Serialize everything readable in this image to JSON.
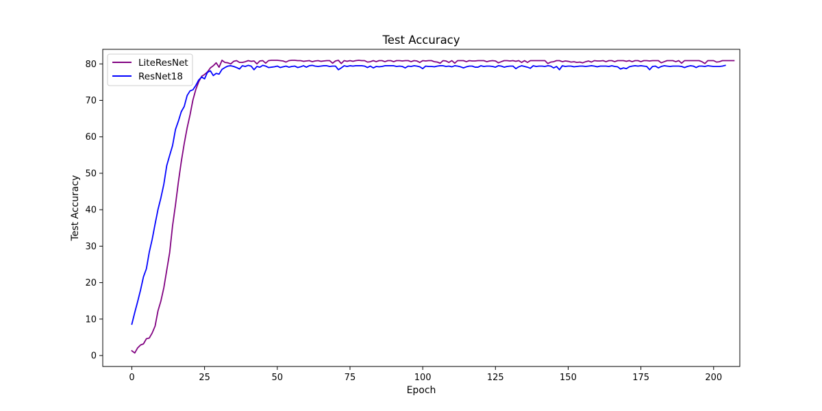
{
  "chart_data": {
    "type": "line",
    "title": "Test Accuracy",
    "xlabel": "Epoch",
    "ylabel": "Test Accuracy",
    "xlim": [
      -10,
      209
    ],
    "ylim": [
      -3,
      84
    ],
    "xticks": [
      0,
      25,
      50,
      75,
      100,
      125,
      150,
      175,
      200
    ],
    "yticks": [
      0,
      10,
      20,
      30,
      40,
      50,
      60,
      70,
      80
    ],
    "grid": false,
    "legend_position": "top-left",
    "series": [
      {
        "name": "LiteResNet",
        "color": "#800080",
        "x_start": 0,
        "x_step": 1,
        "values": [
          1.3,
          0.7,
          2.1,
          2.9,
          3.2,
          4.6,
          4.8,
          6.2,
          8.1,
          12.3,
          15.0,
          18.6,
          23.4,
          28.2,
          35.6,
          41.3,
          47.6,
          53.2,
          58.1,
          62.4,
          66.0,
          70.1,
          73.0,
          75.1,
          76.6,
          77.1,
          77.8,
          78.9,
          79.5,
          80.3,
          79.1,
          81.0,
          80.4,
          80.3,
          80.0,
          80.7,
          80.9,
          80.4,
          80.4,
          80.6,
          80.9,
          80.7,
          80.8,
          80.0,
          80.8,
          80.9,
          80.2,
          80.9,
          81.0,
          81.0,
          81.0,
          80.9,
          80.8,
          80.5,
          80.9,
          81.0,
          81.0,
          80.9,
          80.9,
          80.7,
          80.8,
          80.9,
          80.6,
          80.8,
          80.9,
          80.7,
          80.8,
          80.9,
          80.9,
          80.2,
          80.8,
          81.0,
          80.1,
          80.9,
          80.7,
          80.9,
          80.7,
          80.9,
          81.0,
          80.9,
          80.9,
          80.5,
          80.6,
          80.9,
          80.6,
          80.9,
          80.9,
          80.6,
          80.9,
          80.9,
          80.6,
          80.9,
          80.9,
          80.8,
          80.9,
          80.9,
          80.6,
          80.9,
          80.8,
          80.4,
          80.9,
          80.8,
          80.9,
          80.9,
          80.6,
          80.5,
          80.2,
          80.9,
          80.8,
          80.4,
          80.9,
          80.2,
          80.9,
          80.9,
          80.9,
          80.6,
          80.9,
          80.8,
          80.8,
          80.9,
          80.9,
          80.9,
          80.6,
          80.8,
          80.9,
          80.8,
          80.3,
          80.6,
          80.9,
          80.9,
          80.8,
          80.9,
          80.7,
          80.9,
          80.4,
          80.9,
          80.4,
          80.9,
          80.9,
          80.9,
          80.9,
          80.9,
          80.9,
          80.1,
          80.5,
          80.6,
          80.9,
          80.9,
          80.6,
          80.8,
          80.7,
          80.5,
          80.6,
          80.4,
          80.5,
          80.3,
          80.6,
          80.8,
          80.5,
          80.9,
          80.8,
          80.8,
          80.9,
          80.6,
          80.9,
          80.9,
          80.6,
          80.9,
          80.9,
          80.9,
          80.7,
          80.9,
          80.6,
          80.9,
          80.9,
          80.6,
          80.9,
          80.9,
          80.8,
          80.9,
          80.9,
          80.9,
          80.3,
          80.6,
          80.9,
          80.9,
          80.9,
          80.6,
          80.9,
          80.2,
          80.9,
          80.9,
          80.9,
          80.9,
          80.9,
          80.9,
          80.6,
          80.1,
          80.9,
          80.9,
          80.9,
          80.5,
          80.6,
          80.9,
          80.9,
          80.9,
          80.9,
          80.9
        ]
      },
      {
        "name": "ResNet18",
        "color": "#0000ff",
        "x_start": 0,
        "x_step": 1,
        "values": [
          8.6,
          11.8,
          14.8,
          18.0,
          21.6,
          23.8,
          28.4,
          31.9,
          36.1,
          40.1,
          43.3,
          47.0,
          52.1,
          54.9,
          57.6,
          62.0,
          64.3,
          66.9,
          68.3,
          71.3,
          72.6,
          72.9,
          74.1,
          75.6,
          76.4,
          75.9,
          77.7,
          78.1,
          76.8,
          77.4,
          77.2,
          78.5,
          79.0,
          79.4,
          79.5,
          79.3,
          79.0,
          78.6,
          79.5,
          79.3,
          79.6,
          79.4,
          78.4,
          79.3,
          79.1,
          79.6,
          79.4,
          79.0,
          79.1,
          79.2,
          79.4,
          79.0,
          79.2,
          79.4,
          79.1,
          79.3,
          79.4,
          79.0,
          79.2,
          79.5,
          79.1,
          79.5,
          79.6,
          79.4,
          79.3,
          79.4,
          79.5,
          79.5,
          79.3,
          79.4,
          79.4,
          78.4,
          78.9,
          79.5,
          79.3,
          79.5,
          79.4,
          79.5,
          79.5,
          79.5,
          79.4,
          79.0,
          79.4,
          78.9,
          79.3,
          79.2,
          79.3,
          79.5,
          79.5,
          79.5,
          79.5,
          79.3,
          79.4,
          79.3,
          78.9,
          79.4,
          79.3,
          79.5,
          79.4,
          79.2,
          78.7,
          79.4,
          79.3,
          79.3,
          79.2,
          79.4,
          79.5,
          79.5,
          79.3,
          79.4,
          79.2,
          79.5,
          79.4,
          79.2,
          78.9,
          79.2,
          79.4,
          79.4,
          79.1,
          79.1,
          79.5,
          79.3,
          79.4,
          79.4,
          79.3,
          79.1,
          79.5,
          79.4,
          79.1,
          79.3,
          79.4,
          79.4,
          78.7,
          79.2,
          79.5,
          79.3,
          79.1,
          78.8,
          79.5,
          79.3,
          79.4,
          79.4,
          79.3,
          79.5,
          79.4,
          78.9,
          79.3,
          78.4,
          79.5,
          79.3,
          79.4,
          79.4,
          79.2,
          79.3,
          79.4,
          79.4,
          79.3,
          79.4,
          79.5,
          79.4,
          79.2,
          79.4,
          79.4,
          79.4,
          79.3,
          79.5,
          79.3,
          79.2,
          78.6,
          78.9,
          78.7,
          79.2,
          79.4,
          79.5,
          79.4,
          79.5,
          79.4,
          79.3,
          78.4,
          79.3,
          79.4,
          78.9,
          79.3,
          79.5,
          79.4,
          79.3,
          79.4,
          79.4,
          79.4,
          79.3,
          79.0,
          79.3,
          79.5,
          79.4,
          79.0,
          79.4,
          79.4,
          79.3,
          79.5,
          79.4,
          79.3,
          79.3,
          79.3,
          79.4,
          79.6
        ]
      }
    ]
  }
}
